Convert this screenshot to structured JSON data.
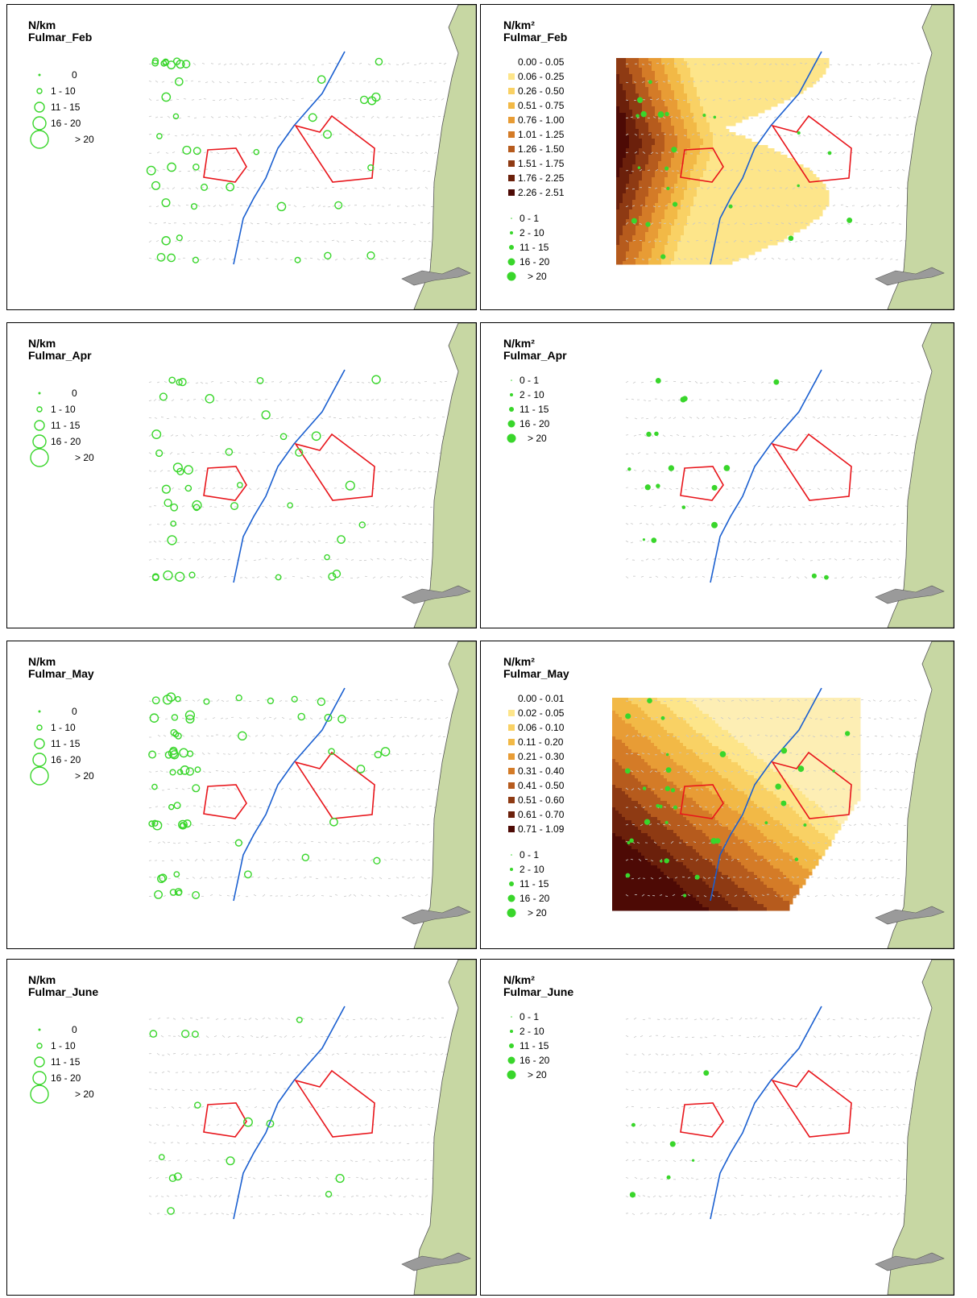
{
  "panels": [
    {
      "id": "feb-km",
      "unit": "N/km",
      "species": "Fulmar_Feb",
      "points_legend": [
        "0",
        "1 - 10",
        "11 - 15",
        "16 - 20",
        "> 20"
      ]
    },
    {
      "id": "feb-km2",
      "unit": "N/km²",
      "species": "Fulmar_Feb",
      "density_legend": [
        "0.00 - 0.05",
        "0.06 - 0.25",
        "0.26 - 0.50",
        "0.51 - 0.75",
        "0.76 - 1.00",
        "1.01 - 1.25",
        "1.26 - 1.50",
        "1.51 - 1.75",
        "1.76 - 2.25",
        "2.26 - 2.51"
      ],
      "points_legend": [
        "0 - 1",
        "2 - 10",
        "11 - 15",
        "16 - 20",
        "> 20"
      ]
    },
    {
      "id": "apr-km",
      "unit": "N/km",
      "species": "Fulmar_Apr",
      "points_legend": [
        "0",
        "1 - 10",
        "11 - 15",
        "16 - 20",
        "> 20"
      ]
    },
    {
      "id": "apr-km2",
      "unit": "N/km²",
      "species": "Fulmar_Apr",
      "points_legend": [
        "0 - 1",
        "2 - 10",
        "11 - 15",
        "16 - 20",
        "> 20"
      ]
    },
    {
      "id": "may-km",
      "unit": "N/km",
      "species": "Fulmar_May",
      "points_legend": [
        "0",
        "1 - 10",
        "11 - 15",
        "16 - 20",
        "> 20"
      ]
    },
    {
      "id": "may-km2",
      "unit": "N/km²",
      "species": "Fulmar_May",
      "density_legend": [
        "0.00 - 0.01",
        "0.02 - 0.05",
        "0.06 - 0.10",
        "0.11 - 0.20",
        "0.21 - 0.30",
        "0.31 - 0.40",
        "0.41 - 0.50",
        "0.51 - 0.60",
        "0.61 - 0.70",
        "0.71 - 1.09"
      ],
      "points_legend": [
        "0 - 1",
        "2 - 10",
        "11 - 15",
        "16 - 20",
        "> 20"
      ]
    },
    {
      "id": "jun-km",
      "unit": "N/km",
      "species": "Fulmar_June",
      "points_legend": [
        "0",
        "1 - 10",
        "11 - 15",
        "16 - 20",
        "> 20"
      ]
    },
    {
      "id": "jun-km2",
      "unit": "N/km²",
      "species": "Fulmar_June",
      "points_legend": [
        "0 - 1",
        "2 - 10",
        "11 - 15",
        "16 - 20",
        "> 20"
      ]
    }
  ],
  "colors": {
    "land": "#c7d7a3",
    "coast_line": "#555555",
    "boundary_line": "#1a5fd0",
    "area_outline": "#e8151b",
    "points": "#39d62b",
    "density_ramp": [
      "#fdeeb4",
      "#fde58a",
      "#f9d164",
      "#f2b946",
      "#e89c35",
      "#d47b27",
      "#b65b1d",
      "#8e3a13",
      "#6b200b",
      "#4d0a05"
    ]
  },
  "icons": {
    "legend_circle": "circle-icon",
    "legend_square": "square-swatch-icon"
  }
}
